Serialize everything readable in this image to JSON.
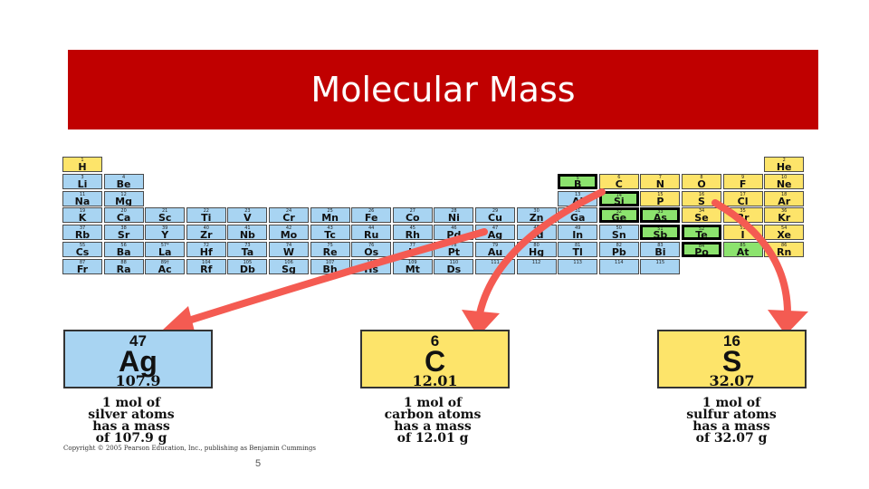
{
  "title": "Molecular Mass",
  "colors": {
    "title_bg": "#c00000",
    "metal": "#a8d4f2",
    "nonmetal": "#fde46a",
    "metalloid": "#8ce36e",
    "arrow": "#f45b52"
  },
  "periodic_table": {
    "elements": [
      {
        "n": "1",
        "s": "H",
        "p": 1,
        "g": 1,
        "c": "nonmetal"
      },
      {
        "n": "2",
        "s": "He",
        "p": 1,
        "g": 18,
        "c": "nonmetal"
      },
      {
        "n": "3",
        "s": "Li",
        "p": 2,
        "g": 1,
        "c": "metal"
      },
      {
        "n": "4",
        "s": "Be",
        "p": 2,
        "g": 2,
        "c": "metal"
      },
      {
        "n": "5",
        "s": "B",
        "p": 2,
        "g": 13,
        "c": "metalloid",
        "dark": true
      },
      {
        "n": "6",
        "s": "C",
        "p": 2,
        "g": 14,
        "c": "nonmetal"
      },
      {
        "n": "7",
        "s": "N",
        "p": 2,
        "g": 15,
        "c": "nonmetal"
      },
      {
        "n": "8",
        "s": "O",
        "p": 2,
        "g": 16,
        "c": "nonmetal"
      },
      {
        "n": "9",
        "s": "F",
        "p": 2,
        "g": 17,
        "c": "nonmetal"
      },
      {
        "n": "10",
        "s": "Ne",
        "p": 2,
        "g": 18,
        "c": "nonmetal"
      },
      {
        "n": "11",
        "s": "Na",
        "p": 3,
        "g": 1,
        "c": "metal"
      },
      {
        "n": "12",
        "s": "Mg",
        "p": 3,
        "g": 2,
        "c": "metal"
      },
      {
        "n": "13",
        "s": "Al",
        "p": 3,
        "g": 13,
        "c": "metal"
      },
      {
        "n": "14",
        "s": "Si",
        "p": 3,
        "g": 14,
        "c": "metalloid",
        "dark": true
      },
      {
        "n": "15",
        "s": "P",
        "p": 3,
        "g": 15,
        "c": "nonmetal"
      },
      {
        "n": "16",
        "s": "S",
        "p": 3,
        "g": 16,
        "c": "nonmetal"
      },
      {
        "n": "17",
        "s": "Cl",
        "p": 3,
        "g": 17,
        "c": "nonmetal"
      },
      {
        "n": "18",
        "s": "Ar",
        "p": 3,
        "g": 18,
        "c": "nonmetal"
      },
      {
        "n": "19",
        "s": "K",
        "p": 4,
        "g": 1,
        "c": "metal"
      },
      {
        "n": "20",
        "s": "Ca",
        "p": 4,
        "g": 2,
        "c": "metal"
      },
      {
        "n": "21",
        "s": "Sc",
        "p": 4,
        "g": 3,
        "c": "metal"
      },
      {
        "n": "22",
        "s": "Ti",
        "p": 4,
        "g": 4,
        "c": "metal"
      },
      {
        "n": "23",
        "s": "V",
        "p": 4,
        "g": 5,
        "c": "metal"
      },
      {
        "n": "24",
        "s": "Cr",
        "p": 4,
        "g": 6,
        "c": "metal"
      },
      {
        "n": "25",
        "s": "Mn",
        "p": 4,
        "g": 7,
        "c": "metal"
      },
      {
        "n": "26",
        "s": "Fe",
        "p": 4,
        "g": 8,
        "c": "metal"
      },
      {
        "n": "27",
        "s": "Co",
        "p": 4,
        "g": 9,
        "c": "metal"
      },
      {
        "n": "28",
        "s": "Ni",
        "p": 4,
        "g": 10,
        "c": "metal"
      },
      {
        "n": "29",
        "s": "Cu",
        "p": 4,
        "g": 11,
        "c": "metal"
      },
      {
        "n": "30",
        "s": "Zn",
        "p": 4,
        "g": 12,
        "c": "metal"
      },
      {
        "n": "31",
        "s": "Ga",
        "p": 4,
        "g": 13,
        "c": "metal"
      },
      {
        "n": "32",
        "s": "Ge",
        "p": 4,
        "g": 14,
        "c": "metalloid",
        "dark": true
      },
      {
        "n": "33",
        "s": "As",
        "p": 4,
        "g": 15,
        "c": "metalloid",
        "dark": true
      },
      {
        "n": "34",
        "s": "Se",
        "p": 4,
        "g": 16,
        "c": "nonmetal"
      },
      {
        "n": "35",
        "s": "Br",
        "p": 4,
        "g": 17,
        "c": "nonmetal"
      },
      {
        "n": "36",
        "s": "Kr",
        "p": 4,
        "g": 18,
        "c": "nonmetal"
      },
      {
        "n": "37",
        "s": "Rb",
        "p": 5,
        "g": 1,
        "c": "metal"
      },
      {
        "n": "38",
        "s": "Sr",
        "p": 5,
        "g": 2,
        "c": "metal"
      },
      {
        "n": "39",
        "s": "Y",
        "p": 5,
        "g": 3,
        "c": "metal"
      },
      {
        "n": "40",
        "s": "Zr",
        "p": 5,
        "g": 4,
        "c": "metal"
      },
      {
        "n": "41",
        "s": "Nb",
        "p": 5,
        "g": 5,
        "c": "metal"
      },
      {
        "n": "42",
        "s": "Mo",
        "p": 5,
        "g": 6,
        "c": "metal"
      },
      {
        "n": "43",
        "s": "Tc",
        "p": 5,
        "g": 7,
        "c": "metal"
      },
      {
        "n": "44",
        "s": "Ru",
        "p": 5,
        "g": 8,
        "c": "metal"
      },
      {
        "n": "45",
        "s": "Rh",
        "p": 5,
        "g": 9,
        "c": "metal"
      },
      {
        "n": "46",
        "s": "Pd",
        "p": 5,
        "g": 10,
        "c": "metal"
      },
      {
        "n": "47",
        "s": "Ag",
        "p": 5,
        "g": 11,
        "c": "metal"
      },
      {
        "n": "48",
        "s": "Cd",
        "p": 5,
        "g": 12,
        "c": "metal"
      },
      {
        "n": "49",
        "s": "In",
        "p": 5,
        "g": 13,
        "c": "metal"
      },
      {
        "n": "50",
        "s": "Sn",
        "p": 5,
        "g": 14,
        "c": "metal"
      },
      {
        "n": "51",
        "s": "Sb",
        "p": 5,
        "g": 15,
        "c": "metalloid",
        "dark": true
      },
      {
        "n": "52",
        "s": "Te",
        "p": 5,
        "g": 16,
        "c": "metalloid",
        "dark": true
      },
      {
        "n": "53",
        "s": "I",
        "p": 5,
        "g": 17,
        "c": "nonmetal"
      },
      {
        "n": "54",
        "s": "Xe",
        "p": 5,
        "g": 18,
        "c": "nonmetal"
      },
      {
        "n": "55",
        "s": "Cs",
        "p": 6,
        "g": 1,
        "c": "metal"
      },
      {
        "n": "56",
        "s": "Ba",
        "p": 6,
        "g": 2,
        "c": "metal"
      },
      {
        "n": "57*",
        "s": "La",
        "p": 6,
        "g": 3,
        "c": "metal"
      },
      {
        "n": "72",
        "s": "Hf",
        "p": 6,
        "g": 4,
        "c": "metal"
      },
      {
        "n": "73",
        "s": "Ta",
        "p": 6,
        "g": 5,
        "c": "metal"
      },
      {
        "n": "74",
        "s": "W",
        "p": 6,
        "g": 6,
        "c": "metal"
      },
      {
        "n": "75",
        "s": "Re",
        "p": 6,
        "g": 7,
        "c": "metal"
      },
      {
        "n": "76",
        "s": "Os",
        "p": 6,
        "g": 8,
        "c": "metal"
      },
      {
        "n": "77",
        "s": "Ir",
        "p": 6,
        "g": 9,
        "c": "metal"
      },
      {
        "n": "78",
        "s": "Pt",
        "p": 6,
        "g": 10,
        "c": "metal"
      },
      {
        "n": "79",
        "s": "Au",
        "p": 6,
        "g": 11,
        "c": "metal"
      },
      {
        "n": "80",
        "s": "Hg",
        "p": 6,
        "g": 12,
        "c": "metal"
      },
      {
        "n": "81",
        "s": "Tl",
        "p": 6,
        "g": 13,
        "c": "metal"
      },
      {
        "n": "82",
        "s": "Pb",
        "p": 6,
        "g": 14,
        "c": "metal"
      },
      {
        "n": "83",
        "s": "Bi",
        "p": 6,
        "g": 15,
        "c": "metal"
      },
      {
        "n": "84",
        "s": "Po",
        "p": 6,
        "g": 16,
        "c": "metalloid",
        "dark": true
      },
      {
        "n": "85",
        "s": "At",
        "p": 6,
        "g": 17,
        "c": "metalloid"
      },
      {
        "n": "86",
        "s": "Rn",
        "p": 6,
        "g": 18,
        "c": "nonmetal"
      },
      {
        "n": "87",
        "s": "Fr",
        "p": 7,
        "g": 1,
        "c": "metal"
      },
      {
        "n": "88",
        "s": "Ra",
        "p": 7,
        "g": 2,
        "c": "metal"
      },
      {
        "n": "89†",
        "s": "Ac",
        "p": 7,
        "g": 3,
        "c": "metal"
      },
      {
        "n": "104",
        "s": "Rf",
        "p": 7,
        "g": 4,
        "c": "metal"
      },
      {
        "n": "105",
        "s": "Db",
        "p": 7,
        "g": 5,
        "c": "metal"
      },
      {
        "n": "106",
        "s": "Sg",
        "p": 7,
        "g": 6,
        "c": "metal"
      },
      {
        "n": "107",
        "s": "Bh",
        "p": 7,
        "g": 7,
        "c": "metal"
      },
      {
        "n": "108",
        "s": "Hs",
        "p": 7,
        "g": 8,
        "c": "metal"
      },
      {
        "n": "109",
        "s": "Mt",
        "p": 7,
        "g": 9,
        "c": "metal"
      },
      {
        "n": "110",
        "s": "Ds",
        "p": 7,
        "g": 10,
        "c": "metal"
      },
      {
        "n": "111",
        "s": "",
        "p": 7,
        "g": 11,
        "c": "metal"
      },
      {
        "n": "112",
        "s": "",
        "p": 7,
        "g": 12,
        "c": "metal"
      },
      {
        "n": "113",
        "s": "",
        "p": 7,
        "g": 13,
        "c": "metal"
      },
      {
        "n": "114",
        "s": "",
        "p": 7,
        "g": 14,
        "c": "metal"
      },
      {
        "n": "115",
        "s": "",
        "p": 7,
        "g": 15,
        "c": "metal"
      }
    ]
  },
  "cards": [
    {
      "number": "47",
      "symbol": "Ag",
      "mass": "107.9",
      "color": "#a8d4f2",
      "caption": [
        "1 mol of",
        "silver atoms",
        "has a mass",
        "of 107.9 g"
      ]
    },
    {
      "number": "6",
      "symbol": "C",
      "mass": "12.01",
      "color": "#fde46a",
      "caption": [
        "1 mol of",
        "carbon atoms",
        "has a mass",
        "of 12.01 g"
      ]
    },
    {
      "number": "16",
      "symbol": "S",
      "mass": "32.07",
      "color": "#fde46a",
      "caption": [
        "1 mol of",
        "sulfur atoms",
        "has a mass",
        "of 32.07 g"
      ]
    }
  ],
  "copyright": "Copyright © 2005 Pearson Education, Inc., publishing as Benjamin Cummings",
  "page_number": "5"
}
